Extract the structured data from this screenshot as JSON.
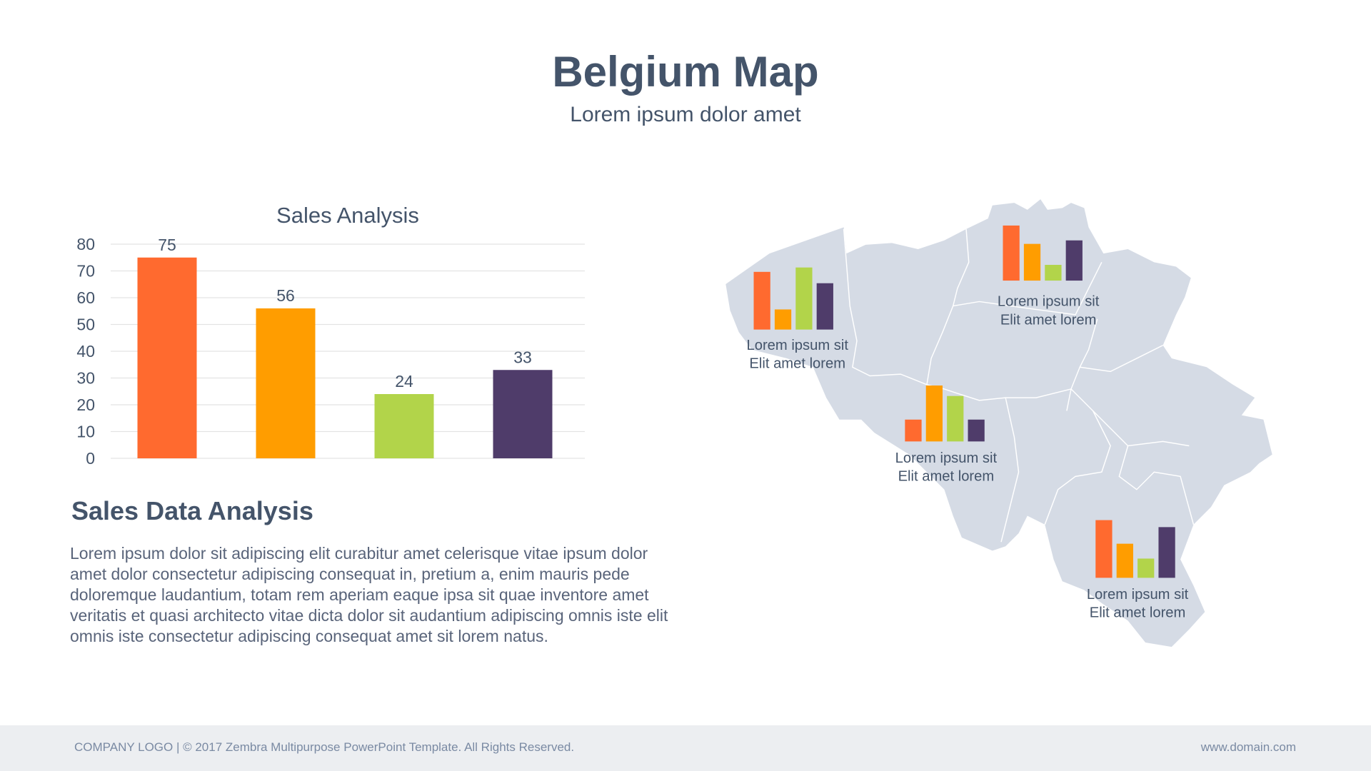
{
  "header": {
    "title": "Belgium Map",
    "subtitle": "Lorem ipsum dolor amet"
  },
  "colors": {
    "c1": "#ff6a2f",
    "c2": "#ff9d00",
    "c3": "#b2d44a",
    "c4": "#4f3c6a",
    "map": "#d5dbe5",
    "text": "#44546a"
  },
  "chart_data": {
    "type": "bar",
    "title": "Sales Analysis",
    "categories": [
      "",
      "",
      "",
      ""
    ],
    "values": [
      75,
      56,
      24,
      33
    ],
    "ylim": [
      0,
      80
    ],
    "yticks": [
      0,
      10,
      20,
      30,
      40,
      50,
      60,
      70,
      80
    ],
    "grid": true,
    "data_labels": true,
    "xlabel": "",
    "ylabel": ""
  },
  "section": {
    "title": "Sales Data Analysis",
    "body": "Lorem ipsum dolor sit adipiscing elit curabitur amet celerisque vitae ipsum dolor amet dolor  consectetur adipiscing consequat in, pretium a, enim mauris pede doloremque laudantium, totam rem aperiam eaque ipsa sit quae inventore amet veritatis et quasi architecto vitae dicta dolor sit audantium adipiscing omnis iste elit omnis iste consectetur adipiscing consequat amet sit lorem natus."
  },
  "map_regions": [
    {
      "line1": "Lorem ipsum sit",
      "line2": "Elit amet lorem",
      "values": [
        66,
        23,
        71,
        53
      ]
    },
    {
      "line1": "Lorem ipsum sit",
      "line2": "Elit amet lorem",
      "values": [
        63,
        42,
        18,
        46
      ]
    },
    {
      "line1": "Lorem ipsum sit",
      "line2": "Elit amet lorem",
      "values": [
        25,
        64,
        52,
        25
      ]
    },
    {
      "line1": "Lorem ipsum sit",
      "line2": "Elit amet lorem",
      "values": [
        66,
        39,
        22,
        58
      ]
    }
  ],
  "footer": {
    "left": "COMPANY LOGO | © 2017 Zembra Multipurpose PowerPoint Template. All Rights Reserved.",
    "right": "www.domain.com"
  }
}
